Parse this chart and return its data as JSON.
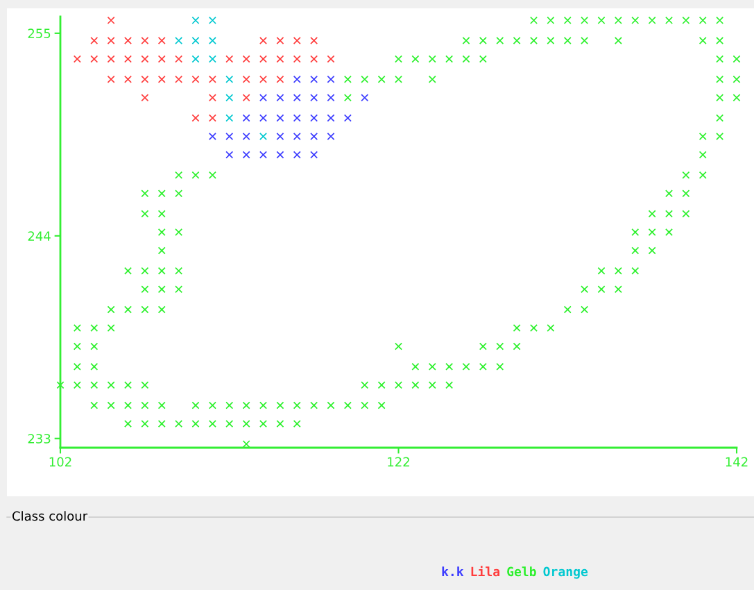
{
  "chart_data": {
    "type": "scatter",
    "xlim": [
      102,
      142
    ],
    "ylim": [
      232.5,
      255.9
    ],
    "xticks": [
      102,
      122,
      142
    ],
    "yticks": [
      233,
      244,
      255
    ],
    "marker": "cross",
    "legend": "bottom",
    "legend_title": "Class colour",
    "series": [
      {
        "name": "k.k",
        "color": "#3c3cff",
        "x": [
          116,
          117,
          118,
          114,
          115,
          116,
          117,
          118,
          120,
          113,
          114,
          115,
          116,
          117,
          118,
          119,
          111,
          112,
          113,
          115,
          116,
          117,
          118,
          112,
          113,
          114,
          115,
          116,
          117
        ],
        "values": [
          252.5,
          252.5,
          252.5,
          251.5,
          251.5,
          251.5,
          251.5,
          251.5,
          251.5,
          250.4,
          250.4,
          250.4,
          250.4,
          250.4,
          250.4,
          250.4,
          249.4,
          249.4,
          249.4,
          249.4,
          249.4,
          249.4,
          249.4,
          248.4,
          248.4,
          248.4,
          248.4,
          248.4,
          248.4
        ]
      },
      {
        "name": "Lila",
        "color": "#ff3c3c",
        "x": [
          105,
          104,
          105,
          106,
          107,
          108,
          114,
          115,
          116,
          117,
          103,
          104,
          105,
          106,
          107,
          108,
          109,
          112,
          113,
          114,
          115,
          116,
          117,
          118,
          105,
          106,
          107,
          108,
          109,
          110,
          111,
          113,
          114,
          115,
          107,
          111,
          113,
          110,
          111
        ],
        "values": [
          255.7,
          254.6,
          254.6,
          254.6,
          254.6,
          254.6,
          254.6,
          254.6,
          254.6,
          254.6,
          253.6,
          253.6,
          253.6,
          253.6,
          253.6,
          253.6,
          253.6,
          253.6,
          253.6,
          253.6,
          253.6,
          253.6,
          253.6,
          253.6,
          252.5,
          252.5,
          252.5,
          252.5,
          252.5,
          252.5,
          252.5,
          252.5,
          252.5,
          252.5,
          251.5,
          251.5,
          251.5,
          250.4,
          250.4
        ]
      },
      {
        "name": "Gelb",
        "color": "#2cf02c",
        "x": [
          130,
          131,
          132,
          133,
          134,
          135,
          136,
          137,
          138,
          139,
          140,
          141,
          126,
          127,
          128,
          129,
          130,
          131,
          132,
          133,
          135,
          140,
          141,
          122,
          123,
          124,
          125,
          126,
          127,
          141,
          142,
          119,
          120,
          121,
          122,
          124,
          141,
          142,
          119,
          141,
          142,
          141,
          140,
          141,
          140,
          109,
          110,
          111,
          139,
          140,
          107,
          108,
          109,
          138,
          139,
          107,
          108,
          137,
          138,
          139,
          108,
          109,
          136,
          137,
          138,
          108,
          136,
          137,
          106,
          107,
          108,
          109,
          134,
          135,
          136,
          107,
          108,
          109,
          133,
          134,
          135,
          105,
          106,
          107,
          108,
          132,
          133,
          103,
          104,
          105,
          129,
          130,
          131,
          103,
          104,
          122,
          127,
          128,
          129,
          103,
          104,
          123,
          124,
          125,
          126,
          127,
          128,
          102,
          103,
          104,
          105,
          106,
          107,
          120,
          121,
          122,
          123,
          124,
          125,
          104,
          105,
          106,
          107,
          108,
          110,
          111,
          112,
          113,
          114,
          115,
          116,
          117,
          118,
          119,
          120,
          121,
          106,
          107,
          108,
          109,
          110,
          111,
          112,
          113,
          114,
          115,
          116,
          113
        ],
        "values": [
          255.7,
          255.7,
          255.7,
          255.7,
          255.7,
          255.7,
          255.7,
          255.7,
          255.7,
          255.7,
          255.7,
          255.7,
          254.6,
          254.6,
          254.6,
          254.6,
          254.6,
          254.6,
          254.6,
          254.6,
          254.6,
          254.6,
          254.6,
          253.6,
          253.6,
          253.6,
          253.6,
          253.6,
          253.6,
          253.6,
          253.6,
          252.5,
          252.5,
          252.5,
          252.5,
          252.5,
          252.5,
          252.5,
          251.5,
          251.5,
          251.5,
          250.4,
          249.4,
          249.4,
          248.4,
          247.3,
          247.3,
          247.3,
          247.3,
          247.3,
          246.3,
          246.3,
          246.3,
          246.3,
          246.3,
          245.2,
          245.2,
          245.2,
          245.2,
          245.2,
          244.2,
          244.2,
          244.2,
          244.2,
          244.2,
          243.2,
          243.2,
          243.2,
          242.1,
          242.1,
          242.1,
          242.1,
          242.1,
          242.1,
          242.1,
          241.1,
          241.1,
          241.1,
          241.1,
          241.1,
          241.1,
          240.0,
          240.0,
          240.0,
          240.0,
          240.0,
          240.0,
          239.0,
          239.0,
          239.0,
          239.0,
          239.0,
          239.0,
          238.0,
          238.0,
          238.0,
          238.0,
          238.0,
          238.0,
          236.9,
          236.9,
          236.9,
          236.9,
          236.9,
          236.9,
          236.9,
          236.9,
          235.9,
          235.9,
          235.9,
          235.9,
          235.9,
          235.9,
          235.9,
          235.9,
          235.9,
          235.9,
          235.9,
          235.9,
          234.8,
          234.8,
          234.8,
          234.8,
          234.8,
          234.8,
          234.8,
          234.8,
          234.8,
          234.8,
          234.8,
          234.8,
          234.8,
          234.8,
          234.8,
          234.8,
          234.8,
          233.8,
          233.8,
          233.8,
          233.8,
          233.8,
          233.8,
          233.8,
          233.8,
          233.8,
          233.8,
          233.8,
          232.7
        ]
      },
      {
        "name": "Orange",
        "color": "#00c8d0",
        "x": [
          110,
          111,
          109,
          110,
          111,
          110,
          111,
          112,
          112,
          112,
          114
        ],
        "values": [
          255.7,
          255.7,
          254.6,
          254.6,
          254.6,
          253.6,
          253.6,
          252.5,
          251.5,
          250.4,
          249.4
        ]
      }
    ]
  }
}
